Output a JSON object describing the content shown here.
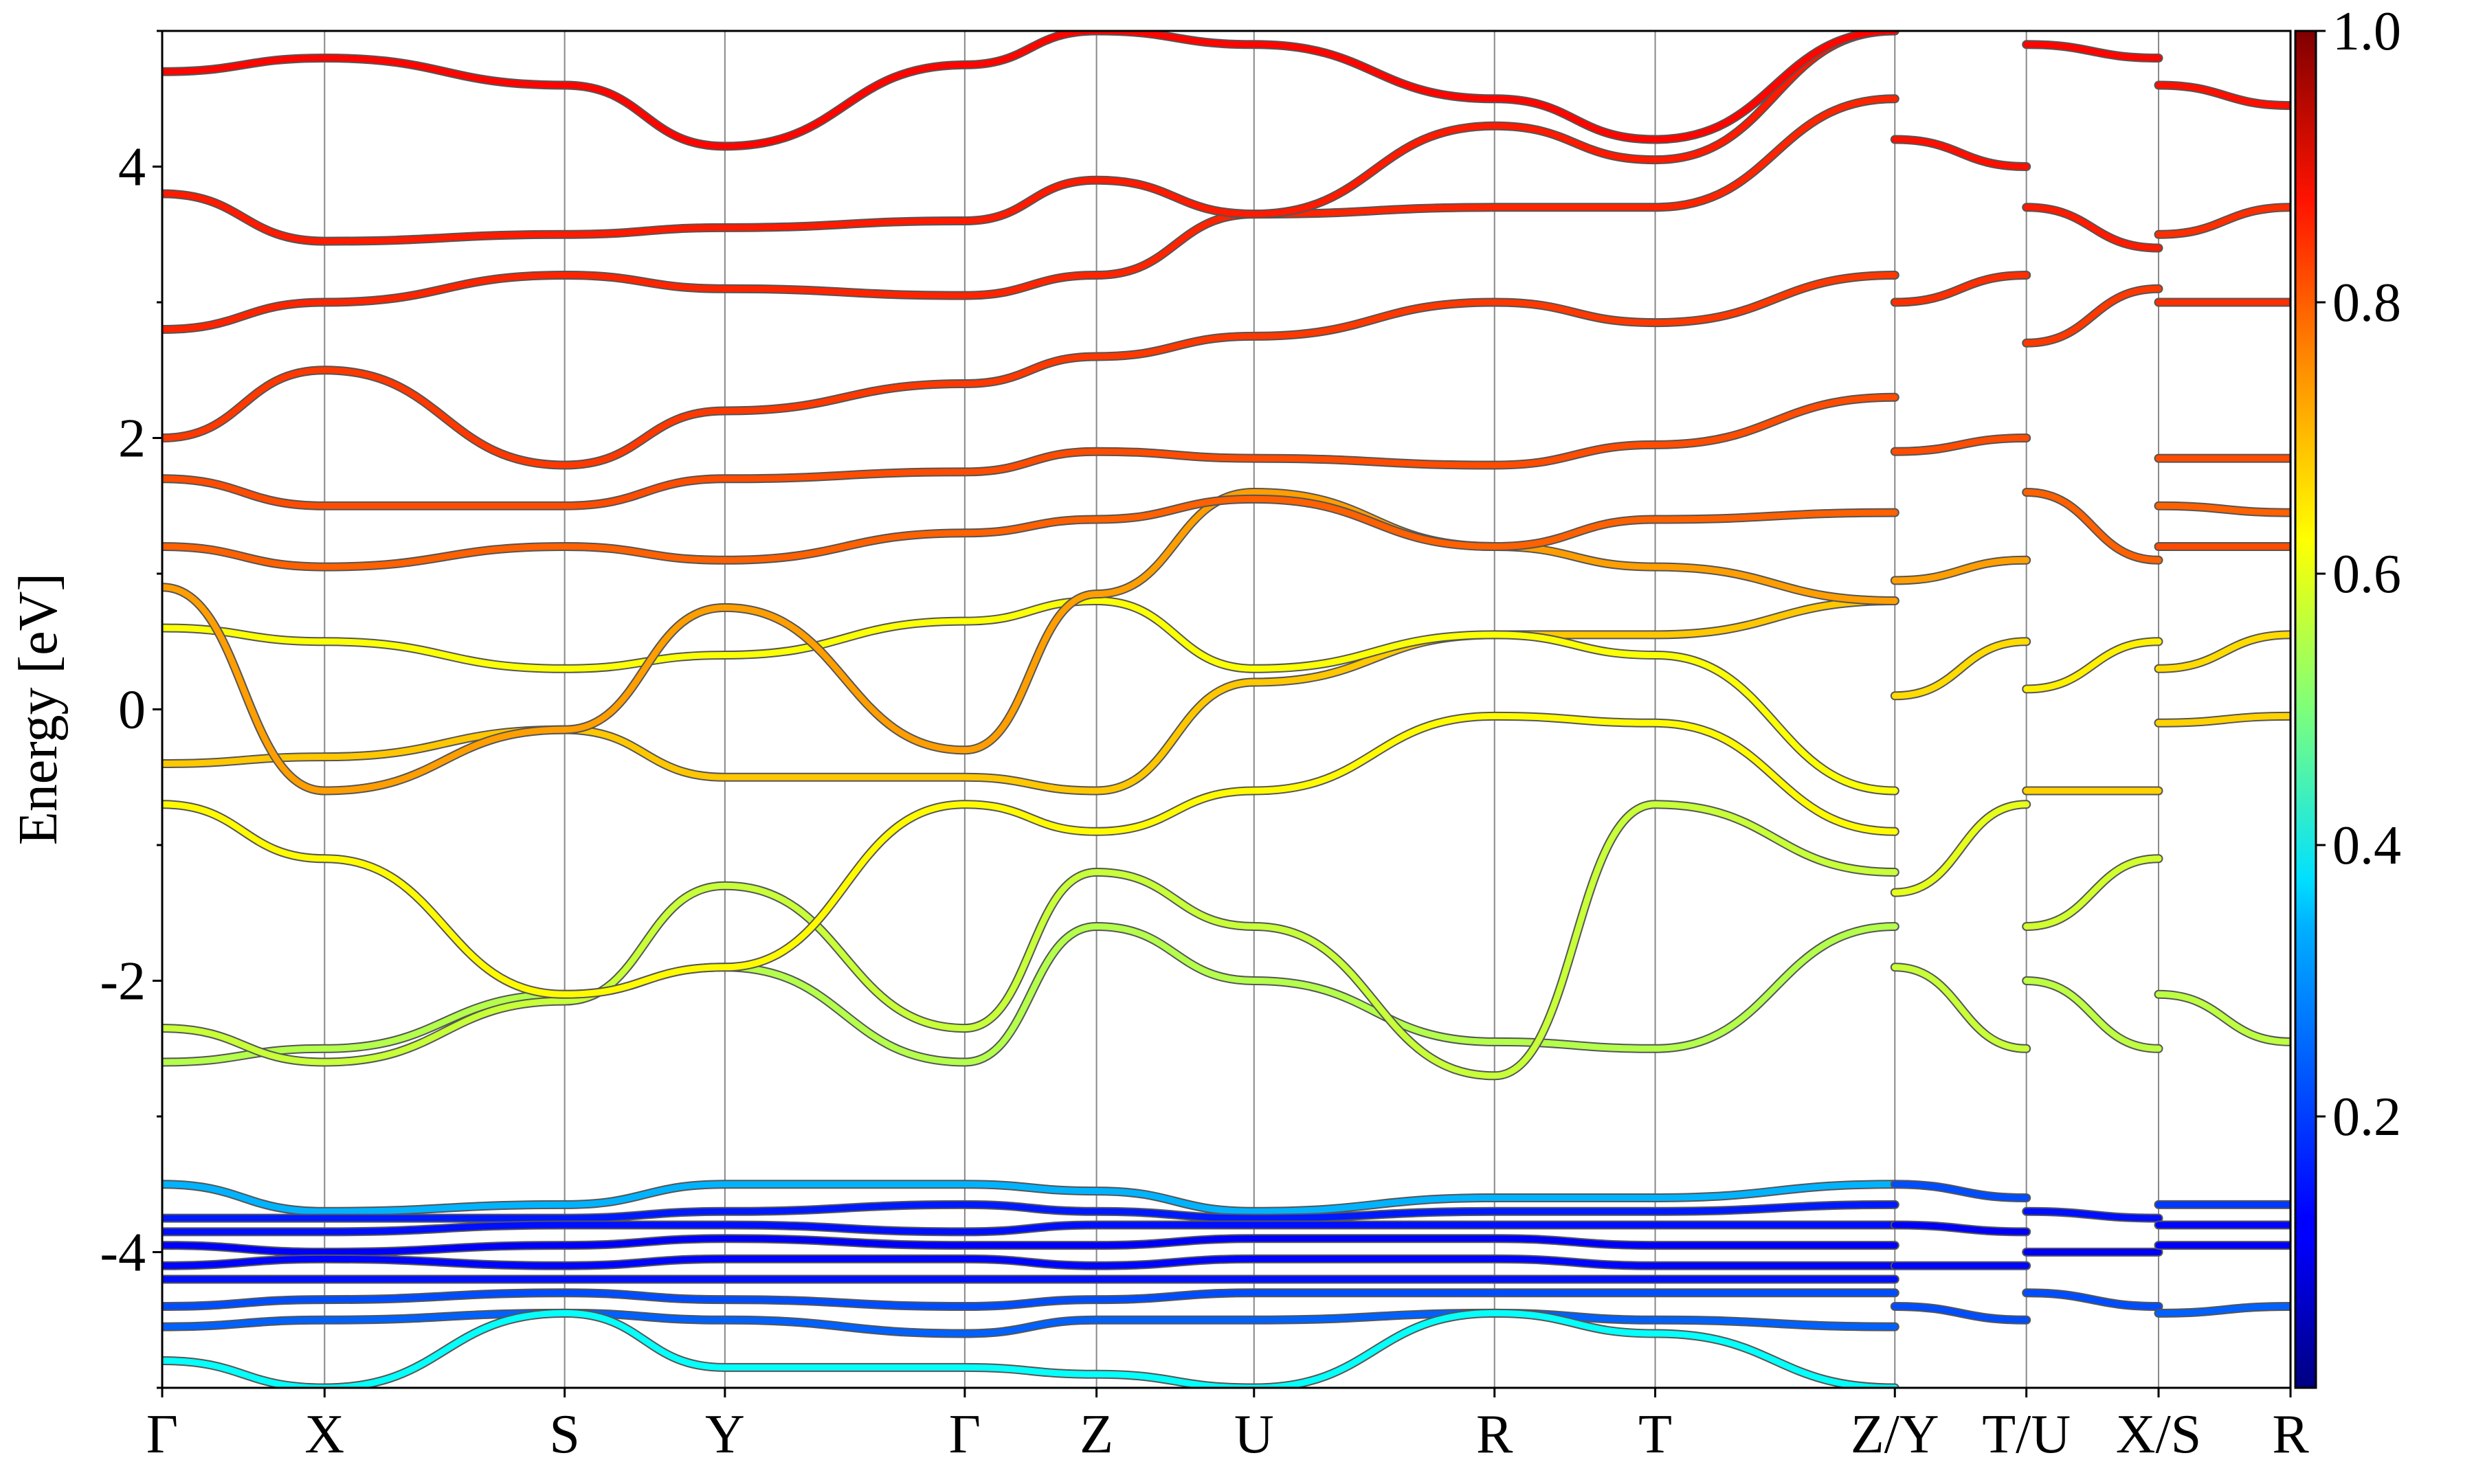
{
  "chart_data": {
    "type": "line",
    "title": "",
    "xlabel": "",
    "ylabel": "Energy [eV]",
    "ylim": [
      -5,
      5
    ],
    "yticks": [
      -4,
      -2,
      0,
      2,
      4
    ],
    "ytick_labels": [
      "-4",
      "-2",
      "0",
      "2",
      "4"
    ],
    "grid": "vertical lines at high-symmetry points",
    "kpath": {
      "labels": [
        "Γ",
        "X",
        "S",
        "Y",
        "Γ",
        "Z",
        "U",
        "R",
        "T",
        "Z/Y",
        "T/U",
        "X/S",
        "R"
      ],
      "positions": [
        0,
        0.0763,
        0.1891,
        0.2644,
        0.3771,
        0.439,
        0.513,
        0.626,
        0.7015,
        0.8141,
        0.8759,
        0.938,
        1.0
      ]
    },
    "colorbar": {
      "colormap": "jet",
      "range": [
        0.0,
        1.0
      ],
      "tick_labels": [
        "0.2",
        "0.4",
        "0.6",
        "0.8",
        "1.0"
      ],
      "ticks": [
        0.2,
        0.4,
        0.6,
        0.8,
        1.0
      ]
    },
    "series": [
      {
        "k": [
          0,
          0.0763,
          0.1891,
          0.2644,
          0.3771,
          0.439,
          0.513,
          0.626,
          0.7015,
          0.8141
        ],
        "energy": [
          -2.6,
          -2.5,
          -2.1,
          -1.9,
          -2.6,
          -1.6,
          -2.0,
          -2.45,
          -2.5,
          -1.6
        ],
        "weight": 0.55
      },
      {
        "k": [
          0,
          0.0763,
          0.1891,
          0.2644,
          0.3771,
          0.439,
          0.513,
          0.626,
          0.7015,
          0.8141
        ],
        "energy": [
          -2.35,
          -2.6,
          -2.15,
          -1.3,
          -2.35,
          -1.2,
          -1.6,
          -2.7,
          -0.7,
          -1.2
        ],
        "weight": 0.57
      },
      {
        "k": [
          0,
          0.0763,
          0.1891,
          0.2644,
          0.3771,
          0.439,
          0.513,
          0.626,
          0.7015,
          0.8141
        ],
        "energy": [
          -0.7,
          -1.1,
          -2.1,
          -1.9,
          -0.7,
          -0.9,
          -0.6,
          -0.05,
          -0.1,
          -0.9
        ],
        "weight": 0.63
      },
      {
        "k": [
          0,
          0.0763,
          0.1891,
          0.2644,
          0.3771,
          0.439,
          0.513,
          0.626,
          0.7015,
          0.8141
        ],
        "energy": [
          -0.4,
          -0.35,
          -0.15,
          -0.5,
          -0.5,
          -0.6,
          0.2,
          0.55,
          0.55,
          0.8
        ],
        "weight": 0.68
      },
      {
        "k": [
          0,
          0.0763,
          0.1891,
          0.2644,
          0.3771,
          0.439,
          0.513,
          0.626,
          0.7015,
          0.8141
        ],
        "energy": [
          0.6,
          0.5,
          0.3,
          0.4,
          0.65,
          0.8,
          0.3,
          0.55,
          0.4,
          -0.6
        ],
        "weight": 0.62
      },
      {
        "k": [
          0,
          0.0763,
          0.1891,
          0.2644,
          0.3771,
          0.439,
          0.513,
          0.626,
          0.7015,
          0.8141
        ],
        "energy": [
          0.9,
          -0.6,
          -0.15,
          0.75,
          -0.3,
          0.85,
          1.6,
          1.2,
          1.05,
          0.8
        ],
        "weight": 0.72
      },
      {
        "k": [
          0,
          0.0763,
          0.1891,
          0.2644,
          0.3771,
          0.439,
          0.513,
          0.626,
          0.7015,
          0.8141
        ],
        "energy": [
          1.2,
          1.05,
          1.2,
          1.1,
          1.3,
          1.4,
          1.55,
          1.2,
          1.4,
          1.45
        ],
        "weight": 0.78
      },
      {
        "k": [
          0,
          0.0763,
          0.1891,
          0.2644,
          0.3771,
          0.439,
          0.513,
          0.626,
          0.7015,
          0.8141
        ],
        "energy": [
          1.7,
          1.5,
          1.5,
          1.7,
          1.75,
          1.9,
          1.85,
          1.8,
          1.95,
          2.3
        ],
        "weight": 0.8
      },
      {
        "k": [
          0,
          0.0763,
          0.1891,
          0.2644,
          0.3771,
          0.439,
          0.513,
          0.626,
          0.7015,
          0.8141
        ],
        "energy": [
          2.0,
          2.5,
          1.8,
          2.2,
          2.4,
          2.6,
          2.75,
          3.0,
          2.85,
          3.2
        ],
        "weight": 0.82
      },
      {
        "k": [
          0,
          0.0763,
          0.1891,
          0.2644,
          0.3771,
          0.439,
          0.513,
          0.626,
          0.7015,
          0.8141
        ],
        "energy": [
          2.8,
          3.0,
          3.2,
          3.1,
          3.05,
          3.2,
          3.65,
          3.7,
          3.7,
          4.5
        ],
        "weight": 0.84
      },
      {
        "k": [
          0,
          0.0763,
          0.1891,
          0.2644,
          0.3771,
          0.439,
          0.513,
          0.626,
          0.7015,
          0.8141
        ],
        "energy": [
          3.8,
          3.45,
          3.5,
          3.55,
          3.6,
          3.9,
          3.65,
          4.3,
          4.05,
          5.0
        ],
        "weight": 0.85
      },
      {
        "k": [
          0,
          0.0763,
          0.1891,
          0.2644,
          0.3771,
          0.439,
          0.513,
          0.626,
          0.7015,
          0.8141
        ],
        "energy": [
          4.7,
          4.8,
          4.6,
          4.15,
          4.75,
          5.0,
          4.9,
          4.5,
          4.2,
          5.0
        ],
        "weight": 0.87
      },
      {
        "k": [
          0,
          0.0763,
          0.1891,
          0.2644,
          0.3771,
          0.439,
          0.513,
          0.626,
          0.7015,
          0.8141
        ],
        "energy": [
          -3.5,
          -3.7,
          -3.65,
          -3.5,
          -3.5,
          -3.55,
          -3.7,
          -3.6,
          -3.6,
          -3.5
        ],
        "weight": 0.3
      },
      {
        "k": [
          0,
          0.0763,
          0.1891,
          0.2644,
          0.3771,
          0.439,
          0.513,
          0.626,
          0.7015,
          0.8141
        ],
        "energy": [
          -3.75,
          -3.75,
          -3.75,
          -3.7,
          -3.65,
          -3.7,
          -3.75,
          -3.7,
          -3.7,
          -3.65
        ],
        "weight": 0.15
      },
      {
        "k": [
          0,
          0.0763,
          0.1891,
          0.2644,
          0.3771,
          0.439,
          0.513,
          0.626,
          0.7015,
          0.8141
        ],
        "energy": [
          -3.85,
          -3.85,
          -3.8,
          -3.8,
          -3.85,
          -3.8,
          -3.8,
          -3.8,
          -3.8,
          -3.8
        ],
        "weight": 0.14
      },
      {
        "k": [
          0,
          0.0763,
          0.1891,
          0.2644,
          0.3771,
          0.439,
          0.513,
          0.626,
          0.7015,
          0.8141
        ],
        "energy": [
          -3.95,
          -4.0,
          -3.95,
          -3.9,
          -3.95,
          -3.95,
          -3.9,
          -3.9,
          -3.95,
          -3.95
        ],
        "weight": 0.12
      },
      {
        "k": [
          0,
          0.0763,
          0.1891,
          0.2644,
          0.3771,
          0.439,
          0.513,
          0.626,
          0.7015,
          0.8141
        ],
        "energy": [
          -4.1,
          -4.05,
          -4.1,
          -4.05,
          -4.05,
          -4.1,
          -4.05,
          -4.05,
          -4.1,
          -4.1
        ],
        "weight": 0.13
      },
      {
        "k": [
          0,
          0.0763,
          0.1891,
          0.2644,
          0.3771,
          0.439,
          0.513,
          0.626,
          0.7015,
          0.8141
        ],
        "energy": [
          -4.2,
          -4.2,
          -4.2,
          -4.2,
          -4.2,
          -4.2,
          -4.2,
          -4.2,
          -4.2,
          -4.2
        ],
        "weight": 0.14
      },
      {
        "k": [
          0,
          0.0763,
          0.1891,
          0.2644,
          0.3771,
          0.439,
          0.513,
          0.626,
          0.7015,
          0.8141
        ],
        "energy": [
          -4.4,
          -4.35,
          -4.3,
          -4.35,
          -4.4,
          -4.35,
          -4.3,
          -4.3,
          -4.3,
          -4.3
        ],
        "weight": 0.2
      },
      {
        "k": [
          0,
          0.0763,
          0.1891,
          0.2644,
          0.3771,
          0.439,
          0.513,
          0.626,
          0.7015,
          0.8141
        ],
        "energy": [
          -4.55,
          -4.5,
          -4.45,
          -4.5,
          -4.6,
          -4.5,
          -4.5,
          -4.45,
          -4.5,
          -4.55
        ],
        "weight": 0.22
      },
      {
        "k": [
          0,
          0.0763,
          0.1891,
          0.2644,
          0.3771,
          0.439,
          0.513,
          0.626,
          0.7015,
          0.8141
        ],
        "energy": [
          -4.8,
          -5.0,
          -4.45,
          -4.85,
          -4.85,
          -4.9,
          -5.0,
          -4.45,
          -4.6,
          -5.0
        ],
        "weight": 0.38
      },
      {
        "k": [
          0.8141,
          0.8759
        ],
        "energy": [
          -1.9,
          -2.5
        ],
        "weight": 0.57
      },
      {
        "k": [
          0.8141,
          0.8759
        ],
        "energy": [
          -1.35,
          -0.7
        ],
        "weight": 0.6
      },
      {
        "k": [
          0.8141,
          0.8759
        ],
        "energy": [
          0.1,
          0.5
        ],
        "weight": 0.66
      },
      {
        "k": [
          0.8141,
          0.8759
        ],
        "energy": [
          0.95,
          1.1
        ],
        "weight": 0.72
      },
      {
        "k": [
          0.8141,
          0.8759
        ],
        "energy": [
          1.9,
          2.0
        ],
        "weight": 0.8
      },
      {
        "k": [
          0.8141,
          0.8759
        ],
        "energy": [
          3.0,
          3.2
        ],
        "weight": 0.83
      },
      {
        "k": [
          0.8141,
          0.8759
        ],
        "energy": [
          4.2,
          4.0
        ],
        "weight": 0.86
      },
      {
        "k": [
          0.8141,
          0.8759
        ],
        "energy": [
          -3.5,
          -3.6
        ],
        "weight": 0.2
      },
      {
        "k": [
          0.8141,
          0.8759
        ],
        "energy": [
          -3.8,
          -3.85
        ],
        "weight": 0.12
      },
      {
        "k": [
          0.8141,
          0.8759
        ],
        "energy": [
          -4.1,
          -4.1
        ],
        "weight": 0.13
      },
      {
        "k": [
          0.8141,
          0.8759
        ],
        "energy": [
          -4.4,
          -4.5
        ],
        "weight": 0.2
      },
      {
        "k": [
          0.8759,
          0.938
        ],
        "energy": [
          -2.0,
          -2.5
        ],
        "weight": 0.56
      },
      {
        "k": [
          0.8759,
          0.938
        ],
        "energy": [
          -1.6,
          -1.1
        ],
        "weight": 0.58
      },
      {
        "k": [
          0.8759,
          0.938
        ],
        "energy": [
          -0.6,
          -0.6
        ],
        "weight": 0.67
      },
      {
        "k": [
          0.8759,
          0.938
        ],
        "energy": [
          0.15,
          0.5
        ],
        "weight": 0.64
      },
      {
        "k": [
          0.8759,
          0.938
        ],
        "energy": [
          1.6,
          1.1
        ],
        "weight": 0.78
      },
      {
        "k": [
          0.8759,
          0.938
        ],
        "energy": [
          2.7,
          3.1
        ],
        "weight": 0.82
      },
      {
        "k": [
          0.8759,
          0.938
        ],
        "energy": [
          3.7,
          3.4
        ],
        "weight": 0.85
      },
      {
        "k": [
          0.8759,
          0.938
        ],
        "energy": [
          4.9,
          4.8
        ],
        "weight": 0.87
      },
      {
        "k": [
          0.8759,
          0.938
        ],
        "energy": [
          -3.7,
          -3.75
        ],
        "weight": 0.14
      },
      {
        "k": [
          0.8759,
          0.938
        ],
        "energy": [
          -4.0,
          -4.0
        ],
        "weight": 0.12
      },
      {
        "k": [
          0.8759,
          0.938
        ],
        "energy": [
          -4.3,
          -4.4
        ],
        "weight": 0.2
      },
      {
        "k": [
          0.938,
          1.0
        ],
        "energy": [
          -2.1,
          -2.45
        ],
        "weight": 0.56
      },
      {
        "k": [
          0.938,
          1.0
        ],
        "energy": [
          -0.1,
          -0.05
        ],
        "weight": 0.67
      },
      {
        "k": [
          0.938,
          1.0
        ],
        "energy": [
          0.3,
          0.55
        ],
        "weight": 0.66
      },
      {
        "k": [
          0.938,
          1.0
        ],
        "energy": [
          1.2,
          1.2
        ],
        "weight": 0.8
      },
      {
        "k": [
          0.938,
          1.0
        ],
        "energy": [
          1.5,
          1.45
        ],
        "weight": 0.78
      },
      {
        "k": [
          0.938,
          1.0
        ],
        "energy": [
          1.85,
          1.85
        ],
        "weight": 0.8
      },
      {
        "k": [
          0.938,
          1.0
        ],
        "energy": [
          3.0,
          3.0
        ],
        "weight": 0.83
      },
      {
        "k": [
          0.938,
          1.0
        ],
        "energy": [
          3.5,
          3.7
        ],
        "weight": 0.83
      },
      {
        "k": [
          0.938,
          1.0
        ],
        "energy": [
          4.6,
          4.45
        ],
        "weight": 0.86
      },
      {
        "k": [
          0.938,
          1.0
        ],
        "energy": [
          -3.65,
          -3.65
        ],
        "weight": 0.18
      },
      {
        "k": [
          0.938,
          1.0
        ],
        "energy": [
          -3.8,
          -3.8
        ],
        "weight": 0.13
      },
      {
        "k": [
          0.938,
          1.0
        ],
        "energy": [
          -3.95,
          -3.95
        ],
        "weight": 0.12
      },
      {
        "k": [
          0.938,
          1.0
        ],
        "energy": [
          -4.45,
          -4.4
        ],
        "weight": 0.22
      }
    ]
  }
}
